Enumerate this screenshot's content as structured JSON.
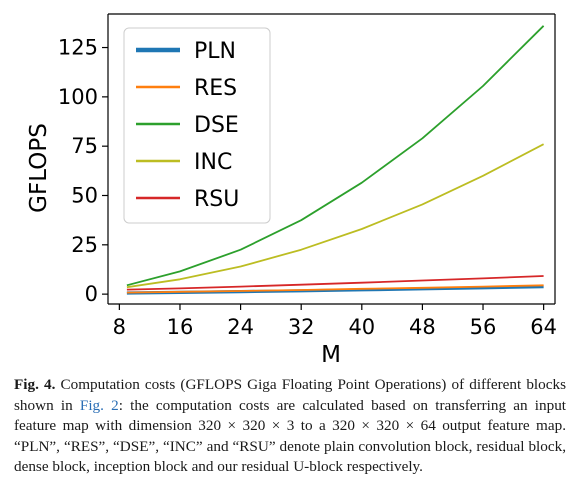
{
  "chart_data": {
    "type": "line",
    "title": "",
    "xlabel": "M",
    "ylabel": "GFLOPS",
    "xlim": [
      6.5,
      65.5
    ],
    "ylim": [
      -5,
      142
    ],
    "xticks": [
      8,
      16,
      24,
      32,
      40,
      48,
      56,
      64
    ],
    "yticks": [
      0,
      25,
      50,
      75,
      100,
      125
    ],
    "x": [
      9,
      16,
      24,
      32,
      40,
      48,
      56,
      64
    ],
    "legend_position": "top-left",
    "grid": false,
    "series": [
      {
        "name": "PLN",
        "color": "#1f77b4",
        "values": [
          0.6,
          0.9,
          1.3,
          1.7,
          2.2,
          2.7,
          3.2,
          3.8
        ]
      },
      {
        "name": "RES",
        "color": "#ff7f0e",
        "values": [
          0.8,
          1.2,
          1.6,
          2.1,
          2.7,
          3.2,
          3.8,
          4.5
        ]
      },
      {
        "name": "DSE",
        "color": "#2ca02c",
        "values": [
          4.5,
          11.5,
          22.5,
          37.5,
          56.5,
          79,
          105.5,
          136
        ]
      },
      {
        "name": "INC",
        "color": "#bcbd22",
        "values": [
          3.5,
          7.5,
          14,
          22.5,
          33,
          45.5,
          60,
          76
        ]
      },
      {
        "name": "RSU",
        "color": "#d62728",
        "values": [
          2.3,
          2.9,
          3.8,
          4.8,
          5.8,
          6.9,
          8.0,
          9.2
        ]
      }
    ]
  },
  "caption": {
    "label": "Fig. 4.",
    "text_before_link": " Computation costs (GFLOPS Giga Floating Point Operations) of different blocks shown in ",
    "link": "Fig. 2",
    "text_after_link": ": the computation costs are calculated based on transferring an input feature map with dimension 320 × 320 × 3 to a 320 × 320 × 64 output feature map. “PLN”, “RES”, “DSE”, “INC” and “RSU” denote plain convolution block, residual block, dense block, inception block and our residual U-block respectively."
  }
}
